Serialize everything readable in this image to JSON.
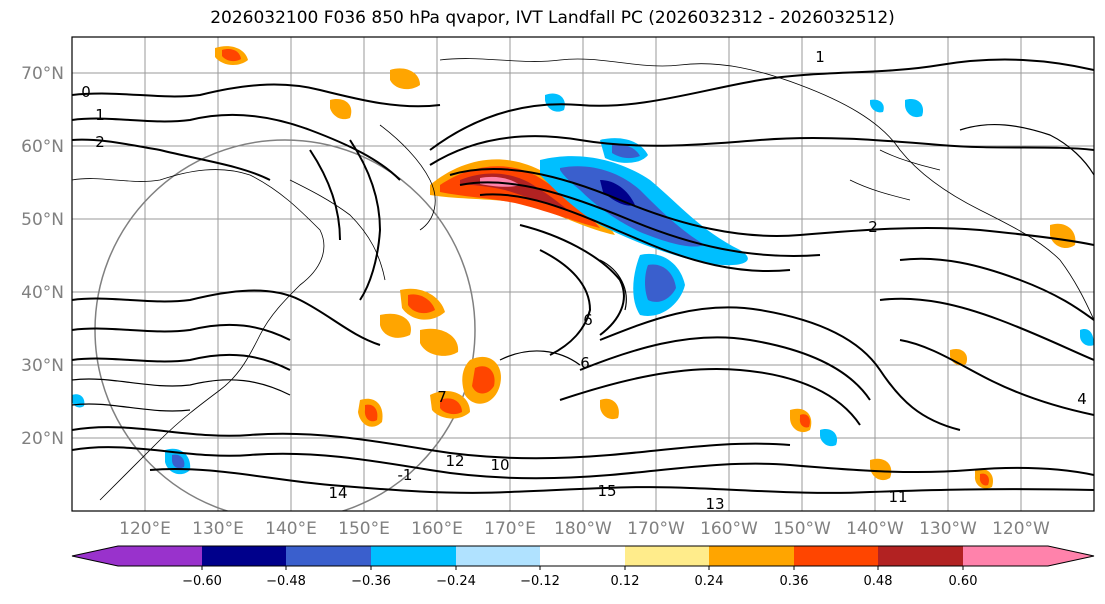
{
  "title": "2026032100 F036 850 hPa qvapor, IVT Landfall PC (2026032312 - 2026032512)",
  "lat_labels": [
    "70°N",
    "60°N",
    "50°N",
    "40°N",
    "30°N",
    "20°N"
  ],
  "lon_labels": [
    "120°E",
    "130°E",
    "140°E",
    "150°E",
    "160°E",
    "170°E",
    "180°W",
    "170°W",
    "160°W",
    "150°W",
    "140°W",
    "130°W",
    "120°W"
  ],
  "colorbar": {
    "colors": [
      "#9932cc",
      "#00008b",
      "#3a5fcd",
      "#00bfff",
      "#b0e2ff",
      "#ffffff",
      "#ffec8b",
      "#ffa500",
      "#ff4500",
      "#b22222",
      "#ff82ab"
    ],
    "tick_labels": [
      "−0.60",
      "−0.48",
      "−0.36",
      "−0.24",
      "−0.12",
      "0.12",
      "0.24",
      "0.36",
      "0.48",
      "0.60"
    ]
  },
  "contour_labels": [
    "0",
    "1",
    "2",
    "1",
    "2",
    "6",
    "6",
    "7",
    "10",
    "12",
    "13",
    "14",
    "15",
    "11",
    "4",
    "-1"
  ]
}
